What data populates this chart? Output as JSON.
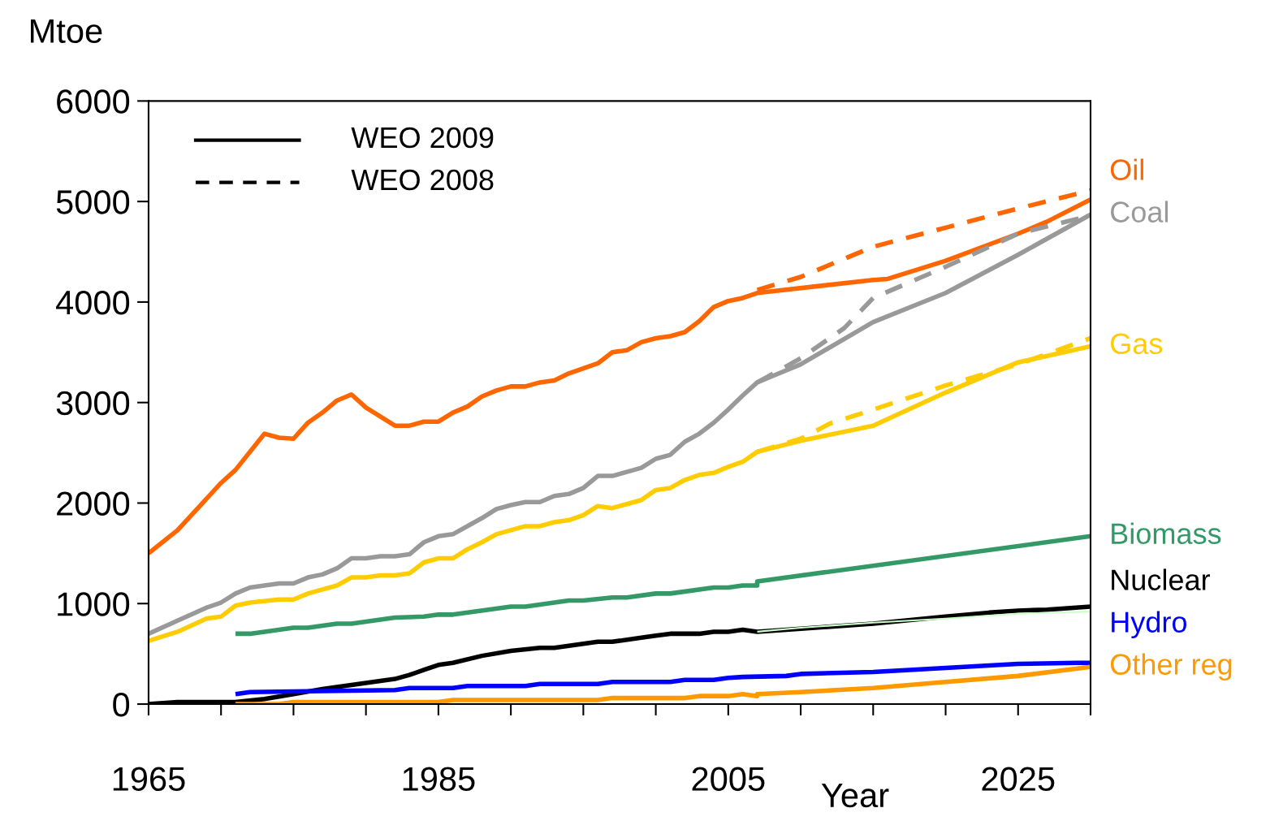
{
  "chart_data": {
    "type": "line",
    "ylabel": "Mtoe",
    "xlabel": "Year",
    "xlim": [
      1965,
      2030
    ],
    "ylim": [
      0,
      6000
    ],
    "xticks": [
      1965,
      {
        "value": 1970,
        "label": null
      },
      {
        "value": 1975,
        "label": null
      },
      {
        "value": 1980,
        "label": null
      },
      1985,
      {
        "value": 1990,
        "label": null
      },
      {
        "value": 1995,
        "label": null
      },
      {
        "value": 2000,
        "label": null
      },
      2005,
      {
        "value": 2010,
        "label": null
      },
      {
        "value": 2015,
        "label": null
      },
      {
        "value": 2020,
        "label": null
      },
      2025,
      {
        "value": 2030,
        "label": null
      }
    ],
    "yticks": [
      0,
      1000,
      2000,
      3000,
      4000,
      5000,
      6000
    ],
    "grid": false,
    "legend": "right",
    "marker": "none",
    "annotations": [
      "WEO 2009",
      "WEO 2008"
    ],
    "series": [
      {
        "name": "Oil",
        "color": "#ff6600",
        "line_style": "solid",
        "x": [
          1965,
          1967,
          1970,
          1971,
          1973,
          1974,
          1975,
          1976,
          1977,
          1978,
          1979,
          1980,
          1982,
          1983,
          1984,
          1985,
          1986,
          1987,
          1988,
          1989,
          1990,
          1991,
          1992,
          1993,
          1994,
          1995,
          1996,
          1997,
          1998,
          1999,
          2000,
          2001,
          2002,
          2003,
          2004,
          2005,
          2006,
          2007,
          2015,
          2016,
          2020,
          2025,
          2027,
          2030
        ],
        "values": [
          1500,
          1730,
          2200,
          2330,
          2690,
          2650,
          2640,
          2800,
          2900,
          3020,
          3080,
          2950,
          2770,
          2770,
          2810,
          2810,
          2900,
          2960,
          3060,
          3120,
          3160,
          3160,
          3200,
          3220,
          3290,
          3340,
          3390,
          3500,
          3520,
          3600,
          3640,
          3660,
          3700,
          3810,
          3950,
          4010,
          4040,
          4090,
          4220,
          4230,
          4410,
          4680,
          4800,
          5020
        ]
      },
      {
        "color": "#ff6600",
        "line_style": "dashed",
        "x": [
          2007,
          2010,
          2015,
          2020,
          2025,
          2030
        ],
        "values": [
          4120,
          4250,
          4550,
          4740,
          4930,
          5110
        ]
      },
      {
        "name": "Coal",
        "color": "#999999",
        "line_style": "solid",
        "x": [
          1965,
          1967,
          1969,
          1970,
          1971,
          1972,
          1974,
          1975,
          1976,
          1977,
          1978,
          1979,
          1980,
          1981,
          1982,
          1983,
          1984,
          1985,
          1986,
          1988,
          1989,
          1990,
          1991,
          1992,
          1993,
          1994,
          1995,
          1996,
          1997,
          1998,
          1999,
          2000,
          2001,
          2002,
          2003,
          2004,
          2005,
          2006,
          2007,
          2008,
          2010,
          2015,
          2020,
          2025,
          2030
        ],
        "values": [
          700,
          830,
          960,
          1010,
          1100,
          1160,
          1200,
          1200,
          1260,
          1290,
          1350,
          1450,
          1450,
          1470,
          1470,
          1490,
          1610,
          1670,
          1690,
          1850,
          1940,
          1980,
          2010,
          2010,
          2070,
          2090,
          2150,
          2270,
          2270,
          2310,
          2350,
          2440,
          2480,
          2610,
          2690,
          2800,
          2930,
          3070,
          3200,
          3260,
          3380,
          3800,
          4090,
          4470,
          4870
        ]
      },
      {
        "color": "#999999",
        "line_style": "dashed",
        "x": [
          2007,
          2010,
          2013,
          2015,
          2020,
          2025,
          2030
        ],
        "values": [
          3200,
          3440,
          3740,
          4040,
          4350,
          4680,
          4860
        ]
      },
      {
        "name": "Gas",
        "color": "#ffcc00",
        "line_style": "solid",
        "x": [
          1965,
          1967,
          1969,
          1970,
          1971,
          1972,
          1974,
          1975,
          1976,
          1977,
          1978,
          1979,
          1980,
          1981,
          1982,
          1983,
          1984,
          1985,
          1986,
          1987,
          1988,
          1989,
          1990,
          1991,
          1992,
          1993,
          1994,
          1995,
          1996,
          1997,
          1998,
          1999,
          2000,
          2001,
          2002,
          2003,
          2004,
          2005,
          2006,
          2007,
          2010,
          2015,
          2020,
          2025,
          2030
        ],
        "values": [
          630,
          720,
          850,
          870,
          980,
          1010,
          1040,
          1040,
          1100,
          1140,
          1180,
          1260,
          1260,
          1280,
          1280,
          1300,
          1410,
          1450,
          1450,
          1540,
          1610,
          1690,
          1730,
          1770,
          1770,
          1810,
          1830,
          1880,
          1970,
          1950,
          1990,
          2030,
          2130,
          2150,
          2230,
          2280,
          2300,
          2360,
          2410,
          2510,
          2620,
          2770,
          3100,
          3400,
          3560
        ]
      },
      {
        "color": "#ffcc00",
        "line_style": "dashed",
        "x": [
          2007,
          2010,
          2012,
          2015,
          2020,
          2025,
          2030
        ],
        "values": [
          2510,
          2640,
          2790,
          2930,
          3170,
          3380,
          3640
        ]
      },
      {
        "name": "Biomass",
        "color": "#339966",
        "line_style": "solid",
        "x": [
          1971,
          1972,
          1975,
          1976,
          1978,
          1979,
          1981,
          1982,
          1984,
          1985,
          1986,
          1990,
          1991,
          1994,
          1995,
          1997,
          1998,
          2000,
          2001,
          2004,
          2005,
          2006,
          2007,
          2007,
          2030
        ],
        "values": [
          700,
          700,
          760,
          760,
          800,
          800,
          840,
          860,
          870,
          890,
          890,
          970,
          970,
          1030,
          1030,
          1060,
          1060,
          1100,
          1100,
          1160,
          1160,
          1180,
          1180,
          1220,
          1670
        ]
      },
      {
        "name": "Nuclear",
        "color": "#000000",
        "line_style": "solid",
        "x": [
          1965,
          1967,
          1971,
          1973,
          1975,
          1977,
          1980,
          1982,
          1983,
          1984,
          1985,
          1986,
          1988,
          1990,
          1992,
          1993,
          1995,
          1996,
          1997,
          1999,
          2000,
          2001,
          2003,
          2004,
          2005,
          2006,
          2007,
          2010,
          2015,
          2020,
          2023,
          2025,
          2027,
          2030
        ],
        "values": [
          0,
          20,
          20,
          50,
          100,
          150,
          210,
          250,
          290,
          340,
          390,
          410,
          480,
          530,
          560,
          560,
          600,
          620,
          620,
          660,
          680,
          700,
          700,
          720,
          720,
          740,
          720,
          750,
          800,
          870,
          910,
          930,
          940,
          970
        ]
      },
      {
        "color": "#ccffcc",
        "line_style": "solid",
        "x": [
          2007,
          2010,
          2015,
          2020,
          2025,
          2030
        ],
        "values": [
          720,
          760,
          810,
          850,
          900,
          920
        ]
      },
      {
        "name": "Hydro",
        "color": "#0000ff",
        "line_style": "solid",
        "x": [
          1971,
          1972,
          1977,
          1982,
          1983,
          1986,
          1987,
          1991,
          1992,
          1996,
          1997,
          2001,
          2002,
          2004,
          2005,
          2006,
          2009,
          2010,
          2015,
          2020,
          2025,
          2029,
          2030
        ],
        "values": [
          100,
          120,
          130,
          140,
          160,
          160,
          180,
          180,
          200,
          200,
          220,
          220,
          240,
          240,
          260,
          270,
          280,
          300,
          320,
          360,
          400,
          410,
          410
        ]
      },
      {
        "name": "Other reg",
        "color": "#ff9900",
        "line_style": "solid",
        "x": [
          1971,
          1974,
          1975,
          1985,
          1986,
          1996,
          1997,
          2002,
          2003,
          2005,
          2006,
          2007,
          2007,
          2010,
          2015,
          2020,
          2025,
          2030
        ],
        "values": [
          0,
          0,
          20,
          20,
          40,
          40,
          60,
          60,
          80,
          80,
          100,
          80,
          100,
          120,
          160,
          220,
          280,
          370
        ]
      }
    ]
  }
}
